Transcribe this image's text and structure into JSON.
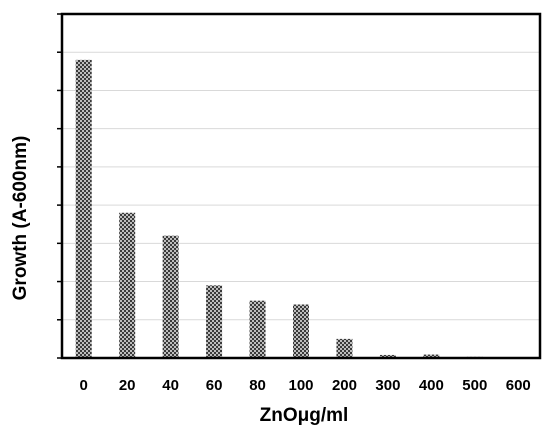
{
  "chart_data": {
    "type": "bar",
    "categories": [
      "0",
      "20",
      "40",
      "60",
      "80",
      "100",
      "200",
      "300",
      "400",
      "500",
      "600"
    ],
    "values": [
      7.8,
      3.8,
      3.2,
      1.9,
      1.5,
      1.4,
      0.5,
      0.08,
      0.09,
      0.03,
      0.02
    ],
    "xlabel": "ZnOμg/ml",
    "ylabel": "Growth (A-600nm)",
    "ylim": [
      0,
      9
    ],
    "y_tick_count": 9,
    "grid": "horizontal",
    "legend": "none",
    "bar_fill": "#3a3a3a",
    "bar_pattern_color": "#bdbdbd"
  }
}
